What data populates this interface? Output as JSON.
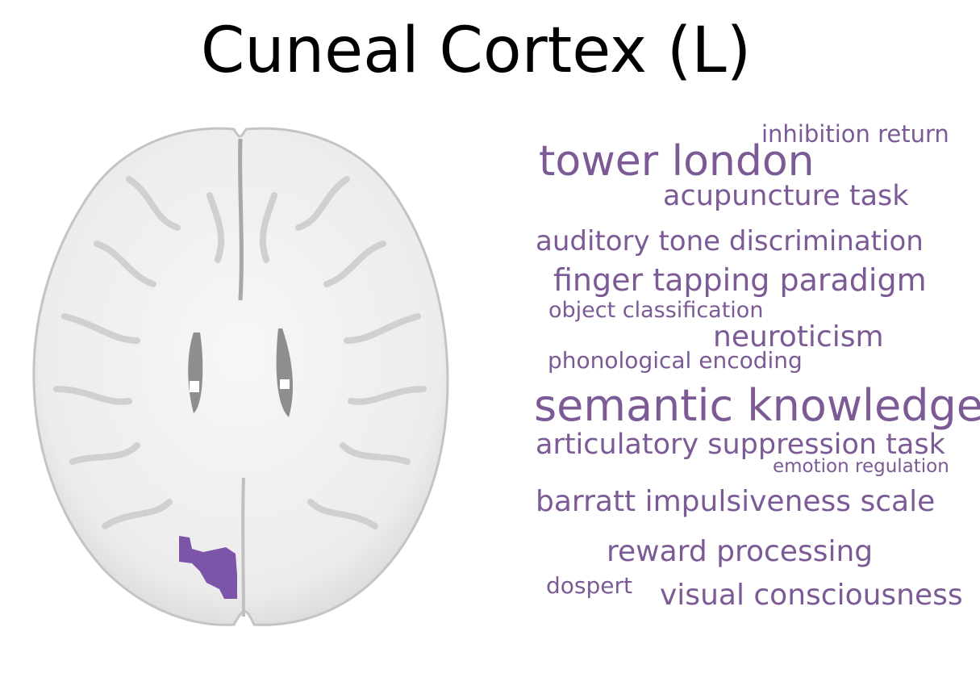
{
  "title": "Cuneal Cortex (L)",
  "colors": {
    "accent": "#7b5a96",
    "region": "#7d55a8",
    "brain": "#f1f1f1",
    "sulcus": "#8e8e8e"
  },
  "brain_image": {
    "description_icon": "axial-brain-slice-icon",
    "highlighted_region": "left-cuneal-cortex"
  },
  "word_cloud": [
    {
      "text": "inhibition return"
    },
    {
      "text": "tower london"
    },
    {
      "text": "acupuncture task"
    },
    {
      "text": "auditory tone discrimination"
    },
    {
      "text": "finger tapping paradigm"
    },
    {
      "text": "object classification"
    },
    {
      "text": "neuroticism"
    },
    {
      "text": "phonological encoding"
    },
    {
      "text": "semantic knowledge"
    },
    {
      "text": "articulatory suppression task"
    },
    {
      "text": "emotion regulation"
    },
    {
      "text": "barratt impulsiveness scale"
    },
    {
      "text": "reward processing"
    },
    {
      "text": "dospert"
    },
    {
      "text": "visual consciousness"
    }
  ]
}
